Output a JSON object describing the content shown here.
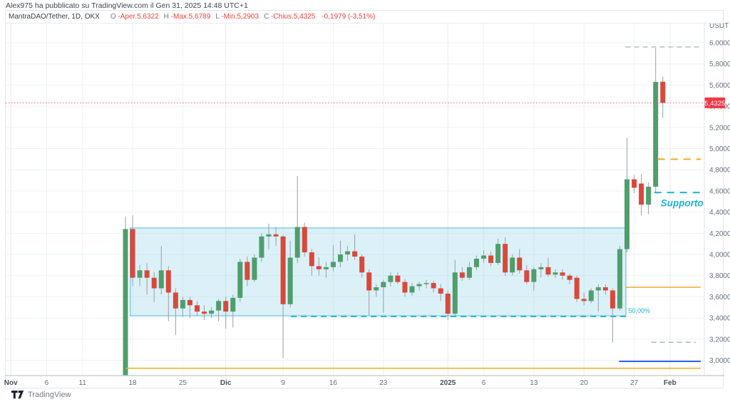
{
  "header": {
    "published_line": "Alex975 ha pubblicato su TradingView.com il Gen 31, 2025 14:48 UTC+1"
  },
  "legend": {
    "symbol": "MantraDAO/Tether, 1D, OKX",
    "fields": [
      {
        "label": "O - ",
        "value": "Aper.5,6322"
      },
      {
        "label": "H - ",
        "value": "Max.5,6789"
      },
      {
        "label": "L - ",
        "value": "Min.5,2903"
      },
      {
        "label": "C - ",
        "value": "Chius.5,4325"
      }
    ],
    "change": "-0,1979 (-3,51%)"
  },
  "footer": {
    "brand": "TradingView"
  },
  "colors": {
    "up": "#4f9e6d",
    "down": "#d9483c",
    "wick": "#9b9eaa",
    "grid": "#eef1f6",
    "grid_emph": "#e7eaf1",
    "axis_text": "#696f7d",
    "axis_line": "#b2b5be",
    "axis_border": "#e0e3eb",
    "zone_fill": "#7fcbe4",
    "zone_border": "#44b2d4",
    "cyan": "#1cb4d4",
    "orange": "#f5a623",
    "blue": "#2962ff",
    "gray_level": "#b2b5be",
    "last_price": "#f23645"
  },
  "chart_data": {
    "type": "candlestick",
    "title": "MantraDAO/Tether",
    "interval": "1D",
    "exchange": "OKX",
    "quote_unit": "USDT",
    "ohlc_current": {
      "open": 5.6322,
      "high": 5.6789,
      "low": 5.2903,
      "close": 5.4325,
      "change": -0.1979,
      "change_pct": -3.51
    },
    "last_price": {
      "value": 5.4325,
      "label": "5,4325"
    },
    "y_axis": {
      "unit": "USDT",
      "tick_values": [
        6.0,
        5.8,
        5.6,
        5.4,
        5.2,
        5.0,
        4.8,
        4.6,
        4.4,
        4.2,
        4.0,
        3.8,
        3.6,
        3.4,
        3.2,
        3.0
      ],
      "tick_labels": [
        "6,0000",
        "5,8000",
        "5,6000",
        "5,4000",
        "5,2000",
        "5,0000",
        "4,8000",
        "4,6000",
        "4,4000",
        "4,2000",
        "4,0000",
        "3,8000",
        "3,6000",
        "3,4000",
        "3,2000",
        "3,0000"
      ],
      "visible_range": [
        2.86,
        6.18
      ],
      "grid": true
    },
    "x_axis": {
      "ticks": [
        {
          "label": "Nov",
          "day": -16,
          "emph": true
        },
        {
          "label": "6",
          "day": -11
        },
        {
          "label": "11",
          "day": -6
        },
        {
          "label": "18",
          "day": 1
        },
        {
          "label": "25",
          "day": 8
        },
        {
          "label": "Dic",
          "day": 14,
          "emph": true
        },
        {
          "label": "9",
          "day": 22
        },
        {
          "label": "16",
          "day": 29
        },
        {
          "label": "23",
          "day": 36
        },
        {
          "label": "2025",
          "day": 45,
          "emph": true
        },
        {
          "label": "6",
          "day": 50
        },
        {
          "label": "13",
          "day": 57
        },
        {
          "label": "20",
          "day": 64
        },
        {
          "label": "27",
          "day": 71
        },
        {
          "label": "Feb",
          "day": 76,
          "emph": true
        }
      ]
    },
    "candle_format": [
      "date",
      "open",
      "high",
      "low",
      "close"
    ],
    "candles": [
      [
        "17 Nov",
        2.86,
        4.36,
        2.85,
        4.24
      ],
      [
        "18 Nov",
        4.24,
        4.37,
        3.7,
        3.78
      ],
      [
        "19 Nov",
        3.78,
        3.9,
        3.7,
        3.85
      ],
      [
        "20 Nov",
        3.85,
        3.92,
        3.62,
        3.78
      ],
      [
        "21 Nov",
        3.78,
        3.83,
        3.55,
        3.68
      ],
      [
        "22 Nov",
        3.68,
        4.08,
        3.62,
        3.85
      ],
      [
        "23 Nov",
        3.85,
        3.89,
        3.37,
        3.64
      ],
      [
        "24 Nov",
        3.64,
        3.68,
        3.24,
        3.49
      ],
      [
        "25 Nov",
        3.49,
        3.6,
        3.41,
        3.57
      ],
      [
        "26 Nov",
        3.57,
        3.6,
        3.4,
        3.52
      ],
      [
        "27 Nov",
        3.52,
        3.56,
        3.42,
        3.46
      ],
      [
        "28 Nov",
        3.46,
        3.52,
        3.38,
        3.44
      ],
      [
        "29 Nov",
        3.44,
        3.5,
        3.4,
        3.47
      ],
      [
        "30 Nov",
        3.47,
        3.58,
        3.37,
        3.56
      ],
      [
        "1 Dic",
        3.56,
        3.6,
        3.3,
        3.46
      ],
      [
        "2 Dic",
        3.46,
        3.62,
        3.31,
        3.59
      ],
      [
        "3 Dic",
        3.59,
        3.96,
        3.55,
        3.93
      ],
      [
        "4 Dic",
        3.93,
        3.98,
        3.7,
        3.76
      ],
      [
        "5 Dic",
        3.76,
        4.0,
        3.74,
        3.97
      ],
      [
        "6 Dic",
        3.97,
        4.2,
        3.93,
        4.17
      ],
      [
        "7 Dic",
        4.17,
        4.29,
        4.05,
        4.19
      ],
      [
        "8 Dic",
        4.19,
        4.26,
        4.08,
        4.17
      ],
      [
        "9 Dic",
        4.17,
        4.18,
        3.02,
        3.53
      ],
      [
        "10 Dic",
        3.53,
        4.13,
        3.5,
        3.97
      ],
      [
        "11 Dic",
        3.97,
        4.74,
        3.92,
        4.26
      ],
      [
        "12 Dic",
        4.26,
        4.3,
        3.98,
        4.02
      ],
      [
        "13 Dic",
        4.02,
        4.05,
        3.8,
        3.89
      ],
      [
        "14 Dic",
        3.89,
        3.97,
        3.8,
        3.86
      ],
      [
        "15 Dic",
        3.86,
        3.93,
        3.78,
        3.88
      ],
      [
        "16 Dic",
        3.88,
        4.09,
        3.84,
        3.93
      ],
      [
        "17 Dic",
        3.93,
        4.13,
        3.88,
        4.0
      ],
      [
        "18 Dic",
        4.0,
        4.08,
        3.94,
        4.03
      ],
      [
        "19 Dic",
        4.03,
        4.19,
        3.95,
        3.98
      ],
      [
        "20 Dic",
        3.98,
        4.0,
        3.78,
        3.83
      ],
      [
        "21 Dic",
        3.83,
        3.86,
        3.42,
        3.66
      ],
      [
        "22 Dic",
        3.66,
        3.72,
        3.6,
        3.69
      ],
      [
        "23 Dic",
        3.69,
        3.76,
        3.45,
        3.74
      ],
      [
        "24 Dic",
        3.74,
        3.83,
        3.7,
        3.8
      ],
      [
        "25 Dic",
        3.8,
        3.83,
        3.72,
        3.74
      ],
      [
        "26 Dic",
        3.74,
        3.77,
        3.6,
        3.64
      ],
      [
        "27 Dic",
        3.64,
        3.73,
        3.61,
        3.7
      ],
      [
        "28 Dic",
        3.7,
        3.74,
        3.66,
        3.72
      ],
      [
        "29 Dic",
        3.72,
        3.76,
        3.68,
        3.73
      ],
      [
        "30 Dic",
        3.73,
        3.75,
        3.64,
        3.68
      ],
      [
        "31 Dic",
        3.68,
        3.72,
        3.56,
        3.63
      ],
      [
        "1 Gen",
        3.63,
        3.66,
        3.38,
        3.44
      ],
      [
        "2 Gen",
        3.44,
        3.95,
        3.42,
        3.83
      ],
      [
        "3 Gen",
        3.83,
        3.88,
        3.75,
        3.78
      ],
      [
        "4 Gen",
        3.78,
        3.93,
        3.76,
        3.88
      ],
      [
        "5 Gen",
        3.88,
        3.99,
        3.85,
        3.96
      ],
      [
        "6 Gen",
        3.96,
        4.04,
        3.92,
        3.99
      ],
      [
        "7 Gen",
        3.99,
        4.03,
        3.89,
        3.92
      ],
      [
        "8 Gen",
        3.92,
        4.15,
        3.9,
        4.1
      ],
      [
        "9 Gen",
        4.1,
        4.16,
        3.8,
        3.83
      ],
      [
        "10 Gen",
        3.83,
        4.0,
        3.8,
        3.97
      ],
      [
        "11 Gen",
        3.97,
        4.05,
        3.82,
        3.85
      ],
      [
        "12 Gen",
        3.85,
        3.9,
        3.72,
        3.74
      ],
      [
        "13 Gen",
        3.74,
        3.88,
        3.66,
        3.86
      ],
      [
        "14 Gen",
        3.86,
        3.92,
        3.78,
        3.88
      ],
      [
        "15 Gen",
        3.88,
        3.97,
        3.79,
        3.81
      ],
      [
        "16 Gen",
        3.81,
        3.86,
        3.78,
        3.83
      ],
      [
        "17 Gen",
        3.83,
        3.86,
        3.76,
        3.8
      ],
      [
        "18 Gen",
        3.8,
        3.82,
        3.72,
        3.76
      ],
      [
        "19 Gen",
        3.78,
        3.8,
        3.55,
        3.58
      ],
      [
        "20 Gen",
        3.58,
        3.64,
        3.52,
        3.56
      ],
      [
        "21 Gen",
        3.56,
        3.68,
        3.54,
        3.66
      ],
      [
        "22 Gen",
        3.66,
        3.72,
        3.46,
        3.69
      ],
      [
        "23 Gen",
        3.69,
        3.72,
        3.62,
        3.66
      ],
      [
        "24 Gen",
        3.66,
        3.68,
        3.17,
        3.49
      ],
      [
        "25 Gen",
        3.49,
        4.08,
        3.47,
        4.05
      ],
      [
        "26 Gen",
        4.05,
        5.1,
        4.02,
        4.71
      ],
      [
        "27 Gen",
        4.71,
        4.75,
        4.58,
        4.63
      ],
      [
        "28 Gen",
        4.67,
        4.76,
        4.37,
        4.47
      ],
      [
        "29 Gen",
        4.47,
        4.68,
        4.38,
        4.64
      ],
      [
        "30 Gen",
        4.64,
        5.95,
        4.58,
        5.63
      ],
      [
        "31 Gen",
        5.6322,
        5.6789,
        5.2903,
        5.4325
      ]
    ],
    "zone": {
      "name": "support-zone",
      "from_day": 0.65,
      "to_day": 69.85,
      "price_top": 4.25,
      "price_bottom": 3.42
    },
    "levels": [
      {
        "name": "resistance-gray-dashed",
        "price": 5.96,
        "from_day": 69.8,
        "to_day": 80.3,
        "style": "dashed",
        "colorKey": "gray_level",
        "width": 1.4,
        "dash": "7,5"
      },
      {
        "name": "orange-upper-dashed",
        "price": 4.9,
        "from_day": 74.3,
        "to_day": 80.3,
        "style": "dashed",
        "colorKey": "orange",
        "width": 2,
        "dash": "10,8"
      },
      {
        "name": "supporto-dashed",
        "price": 4.585,
        "from_day": 73.8,
        "to_day": 80.3,
        "style": "dashed",
        "colorKey": "cyan",
        "width": 2,
        "dash": "10,8"
      },
      {
        "name": "fib-50-dashed",
        "price": 3.415,
        "from_day": 23.1,
        "to_day": 69.85,
        "style": "dashed",
        "colorKey": "cyan",
        "width": 2,
        "dash": "8,6"
      },
      {
        "name": "gray-lower-dashed",
        "price": 3.17,
        "from_day": 73.4,
        "to_day": 79.6,
        "style": "dashed",
        "colorKey": "gray_level",
        "width": 1.4,
        "dash": "7,5"
      },
      {
        "name": "blue-support-line",
        "price": 2.99,
        "from_day": 68.9,
        "to_day": 80.3,
        "style": "solid",
        "colorKey": "blue",
        "width": 2
      },
      {
        "name": "orange-mid-line",
        "price": 3.69,
        "from_day": 69.9,
        "to_day": 80.3,
        "style": "solid",
        "colorKey": "orange",
        "width": 1.5
      },
      {
        "name": "orange-base-line",
        "price": 2.925,
        "from_day": 0,
        "to_day": 80.3,
        "style": "solid",
        "colorKey": "orange",
        "width": 1.5
      }
    ],
    "annotations": [
      {
        "name": "supporto-label",
        "text": "Supporto",
        "x_day": 74.7,
        "price": 4.455,
        "colorKey": "cyan",
        "size": 13.5,
        "bold": true,
        "italic": true
      },
      {
        "name": "fib-50-label",
        "text": "50,00%",
        "x_day": 70.2,
        "price": 3.447,
        "colorKey": "cyan",
        "size": 9,
        "bold": false,
        "italic": false
      }
    ]
  }
}
